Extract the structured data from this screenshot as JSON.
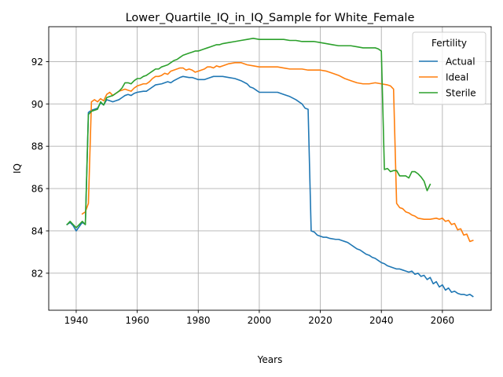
{
  "chart_data": {
    "type": "line",
    "title": "Lower_Quartile_IQ_in_IQ_Sample for White_Female",
    "xlabel": "Years",
    "ylabel": "IQ",
    "xlim": [
      1931,
      2076
    ],
    "ylim": [
      80.25,
      93.65
    ],
    "xticks": [
      1940,
      1960,
      1980,
      2000,
      2020,
      2040,
      2060
    ],
    "yticks": [
      82,
      84,
      86,
      88,
      90,
      92
    ],
    "grid": true,
    "legend": {
      "title": "Fertility",
      "position": "top-right"
    },
    "series": [
      {
        "name": "Actual",
        "color": "#1f77b4",
        "points": [
          [
            1937,
            84.3
          ],
          [
            1938,
            84.4
          ],
          [
            1939,
            84.25
          ],
          [
            1940,
            84.0
          ],
          [
            1941,
            84.2
          ],
          [
            1942,
            84.4
          ],
          [
            1943,
            84.3
          ],
          [
            1944,
            89.6
          ],
          [
            1945,
            89.7
          ],
          [
            1946,
            89.75
          ],
          [
            1947,
            89.8
          ],
          [
            1948,
            90.05
          ],
          [
            1949,
            89.95
          ],
          [
            1950,
            90.2
          ],
          [
            1951,
            90.15
          ],
          [
            1952,
            90.1
          ],
          [
            1953,
            90.15
          ],
          [
            1954,
            90.2
          ],
          [
            1955,
            90.3
          ],
          [
            1956,
            90.4
          ],
          [
            1957,
            90.45
          ],
          [
            1958,
            90.4
          ],
          [
            1959,
            90.5
          ],
          [
            1960,
            90.55
          ],
          [
            1962,
            90.6
          ],
          [
            1963,
            90.6
          ],
          [
            1964,
            90.7
          ],
          [
            1966,
            90.9
          ],
          [
            1968,
            90.95
          ],
          [
            1970,
            91.05
          ],
          [
            1971,
            91.0
          ],
          [
            1972,
            91.1
          ],
          [
            1974,
            91.25
          ],
          [
            1975,
            91.3
          ],
          [
            1977,
            91.25
          ],
          [
            1978,
            91.25
          ],
          [
            1980,
            91.15
          ],
          [
            1982,
            91.15
          ],
          [
            1984,
            91.25
          ],
          [
            1985,
            91.3
          ],
          [
            1986,
            91.3
          ],
          [
            1988,
            91.3
          ],
          [
            1990,
            91.25
          ],
          [
            1992,
            91.2
          ],
          [
            1994,
            91.1
          ],
          [
            1996,
            90.95
          ],
          [
            1997,
            90.8
          ],
          [
            1998,
            90.75
          ],
          [
            1999,
            90.65
          ],
          [
            2000,
            90.55
          ],
          [
            2002,
            90.55
          ],
          [
            2004,
            90.55
          ],
          [
            2006,
            90.55
          ],
          [
            2008,
            90.45
          ],
          [
            2010,
            90.35
          ],
          [
            2012,
            90.2
          ],
          [
            2014,
            90.0
          ],
          [
            2015,
            89.8
          ],
          [
            2016,
            89.75
          ],
          [
            2017,
            84.0
          ],
          [
            2018,
            83.95
          ],
          [
            2019,
            83.8
          ],
          [
            2020,
            83.75
          ],
          [
            2021,
            83.7
          ],
          [
            2022,
            83.7
          ],
          [
            2023,
            83.65
          ],
          [
            2025,
            83.6
          ],
          [
            2026,
            83.6
          ],
          [
            2027,
            83.55
          ],
          [
            2028,
            83.5
          ],
          [
            2029,
            83.45
          ],
          [
            2030,
            83.35
          ],
          [
            2031,
            83.25
          ],
          [
            2032,
            83.15
          ],
          [
            2033,
            83.1
          ],
          [
            2034,
            83.0
          ],
          [
            2035,
            82.9
          ],
          [
            2036,
            82.85
          ],
          [
            2037,
            82.75
          ],
          [
            2038,
            82.7
          ],
          [
            2039,
            82.6
          ],
          [
            2040,
            82.5
          ],
          [
            2041,
            82.45
          ],
          [
            2042,
            82.35
          ],
          [
            2043,
            82.3
          ],
          [
            2044,
            82.25
          ],
          [
            2045,
            82.2
          ],
          [
            2046,
            82.2
          ],
          [
            2047,
            82.15
          ],
          [
            2048,
            82.1
          ],
          [
            2049,
            82.05
          ],
          [
            2050,
            82.1
          ],
          [
            2051,
            81.95
          ],
          [
            2052,
            82.0
          ],
          [
            2053,
            81.85
          ],
          [
            2054,
            81.9
          ],
          [
            2055,
            81.7
          ],
          [
            2056,
            81.8
          ],
          [
            2057,
            81.5
          ],
          [
            2058,
            81.6
          ],
          [
            2059,
            81.35
          ],
          [
            2060,
            81.45
          ],
          [
            2061,
            81.2
          ],
          [
            2062,
            81.3
          ],
          [
            2063,
            81.1
          ],
          [
            2064,
            81.15
          ],
          [
            2065,
            81.05
          ],
          [
            2066,
            81.0
          ],
          [
            2067,
            81.0
          ],
          [
            2068,
            80.95
          ],
          [
            2069,
            81.0
          ],
          [
            2070,
            80.9
          ]
        ]
      },
      {
        "name": "Ideal",
        "color": "#ff7f0e",
        "points": [
          [
            1942,
            84.8
          ],
          [
            1943,
            84.9
          ],
          [
            1944,
            85.3
          ],
          [
            1945,
            90.1
          ],
          [
            1946,
            90.2
          ],
          [
            1947,
            90.1
          ],
          [
            1948,
            90.25
          ],
          [
            1949,
            90.15
          ],
          [
            1950,
            90.45
          ],
          [
            1951,
            90.55
          ],
          [
            1952,
            90.4
          ],
          [
            1953,
            90.5
          ],
          [
            1954,
            90.6
          ],
          [
            1955,
            90.65
          ],
          [
            1956,
            90.7
          ],
          [
            1957,
            90.65
          ],
          [
            1958,
            90.6
          ],
          [
            1959,
            90.75
          ],
          [
            1960,
            90.85
          ],
          [
            1961,
            90.9
          ],
          [
            1962,
            90.95
          ],
          [
            1963,
            90.95
          ],
          [
            1964,
            91.05
          ],
          [
            1965,
            91.2
          ],
          [
            1966,
            91.3
          ],
          [
            1967,
            91.3
          ],
          [
            1968,
            91.35
          ],
          [
            1969,
            91.45
          ],
          [
            1970,
            91.4
          ],
          [
            1971,
            91.55
          ],
          [
            1972,
            91.6
          ],
          [
            1973,
            91.65
          ],
          [
            1974,
            91.7
          ],
          [
            1975,
            91.7
          ],
          [
            1976,
            91.6
          ],
          [
            1977,
            91.65
          ],
          [
            1978,
            91.6
          ],
          [
            1979,
            91.5
          ],
          [
            1980,
            91.55
          ],
          [
            1981,
            91.6
          ],
          [
            1982,
            91.65
          ],
          [
            1983,
            91.75
          ],
          [
            1984,
            91.75
          ],
          [
            1985,
            91.7
          ],
          [
            1986,
            91.8
          ],
          [
            1987,
            91.75
          ],
          [
            1988,
            91.8
          ],
          [
            1989,
            91.85
          ],
          [
            1990,
            91.9
          ],
          [
            1992,
            91.95
          ],
          [
            1994,
            91.95
          ],
          [
            1996,
            91.85
          ],
          [
            1998,
            91.8
          ],
          [
            2000,
            91.75
          ],
          [
            2002,
            91.75
          ],
          [
            2004,
            91.75
          ],
          [
            2006,
            91.75
          ],
          [
            2008,
            91.7
          ],
          [
            2010,
            91.65
          ],
          [
            2012,
            91.65
          ],
          [
            2014,
            91.65
          ],
          [
            2016,
            91.6
          ],
          [
            2018,
            91.6
          ],
          [
            2020,
            91.6
          ],
          [
            2022,
            91.55
          ],
          [
            2024,
            91.45
          ],
          [
            2026,
            91.35
          ],
          [
            2028,
            91.2
          ],
          [
            2030,
            91.1
          ],
          [
            2032,
            91.0
          ],
          [
            2034,
            90.95
          ],
          [
            2036,
            90.95
          ],
          [
            2038,
            91.0
          ],
          [
            2040,
            90.95
          ],
          [
            2042,
            90.9
          ],
          [
            2043,
            90.85
          ],
          [
            2044,
            90.7
          ],
          [
            2045,
            85.3
          ],
          [
            2046,
            85.1
          ],
          [
            2047,
            85.05
          ],
          [
            2048,
            84.9
          ],
          [
            2049,
            84.85
          ],
          [
            2050,
            84.75
          ],
          [
            2051,
            84.7
          ],
          [
            2052,
            84.6
          ],
          [
            2054,
            84.55
          ],
          [
            2056,
            84.55
          ],
          [
            2058,
            84.6
          ],
          [
            2059,
            84.55
          ],
          [
            2060,
            84.6
          ],
          [
            2061,
            84.45
          ],
          [
            2062,
            84.5
          ],
          [
            2063,
            84.3
          ],
          [
            2064,
            84.35
          ],
          [
            2065,
            84.05
          ],
          [
            2066,
            84.1
          ],
          [
            2067,
            83.8
          ],
          [
            2068,
            83.85
          ],
          [
            2069,
            83.5
          ],
          [
            2070,
            83.55
          ]
        ]
      },
      {
        "name": "Sterile",
        "color": "#2ca02c",
        "points": [
          [
            1937,
            84.3
          ],
          [
            1938,
            84.45
          ],
          [
            1939,
            84.3
          ],
          [
            1940,
            84.15
          ],
          [
            1941,
            84.3
          ],
          [
            1942,
            84.45
          ],
          [
            1943,
            84.3
          ],
          [
            1944,
            89.5
          ],
          [
            1945,
            89.65
          ],
          [
            1946,
            89.7
          ],
          [
            1947,
            89.75
          ],
          [
            1948,
            90.1
          ],
          [
            1949,
            89.95
          ],
          [
            1950,
            90.3
          ],
          [
            1951,
            90.35
          ],
          [
            1952,
            90.4
          ],
          [
            1953,
            90.5
          ],
          [
            1954,
            90.6
          ],
          [
            1955,
            90.75
          ],
          [
            1956,
            91.0
          ],
          [
            1957,
            91.0
          ],
          [
            1958,
            90.95
          ],
          [
            1959,
            91.1
          ],
          [
            1960,
            91.2
          ],
          [
            1961,
            91.2
          ],
          [
            1962,
            91.3
          ],
          [
            1963,
            91.35
          ],
          [
            1964,
            91.45
          ],
          [
            1965,
            91.55
          ],
          [
            1966,
            91.65
          ],
          [
            1967,
            91.65
          ],
          [
            1968,
            91.75
          ],
          [
            1969,
            91.8
          ],
          [
            1970,
            91.85
          ],
          [
            1971,
            91.95
          ],
          [
            1972,
            92.05
          ],
          [
            1973,
            92.1
          ],
          [
            1974,
            92.2
          ],
          [
            1975,
            92.3
          ],
          [
            1976,
            92.35
          ],
          [
            1977,
            92.4
          ],
          [
            1978,
            92.45
          ],
          [
            1979,
            92.5
          ],
          [
            1980,
            92.5
          ],
          [
            1981,
            92.55
          ],
          [
            1982,
            92.6
          ],
          [
            1983,
            92.65
          ],
          [
            1984,
            92.7
          ],
          [
            1985,
            92.75
          ],
          [
            1986,
            92.8
          ],
          [
            1987,
            92.8
          ],
          [
            1988,
            92.85
          ],
          [
            1990,
            92.9
          ],
          [
            1992,
            92.95
          ],
          [
            1994,
            93.0
          ],
          [
            1996,
            93.05
          ],
          [
            1998,
            93.1
          ],
          [
            2000,
            93.05
          ],
          [
            2002,
            93.05
          ],
          [
            2004,
            93.05
          ],
          [
            2006,
            93.05
          ],
          [
            2008,
            93.05
          ],
          [
            2010,
            93.0
          ],
          [
            2012,
            93.0
          ],
          [
            2014,
            92.95
          ],
          [
            2016,
            92.95
          ],
          [
            2018,
            92.95
          ],
          [
            2020,
            92.9
          ],
          [
            2022,
            92.85
          ],
          [
            2024,
            92.8
          ],
          [
            2026,
            92.75
          ],
          [
            2028,
            92.75
          ],
          [
            2030,
            92.75
          ],
          [
            2032,
            92.7
          ],
          [
            2034,
            92.65
          ],
          [
            2036,
            92.65
          ],
          [
            2038,
            92.65
          ],
          [
            2039,
            92.6
          ],
          [
            2040,
            92.5
          ],
          [
            2041,
            86.9
          ],
          [
            2042,
            86.95
          ],
          [
            2043,
            86.8
          ],
          [
            2044,
            86.85
          ],
          [
            2045,
            86.85
          ],
          [
            2046,
            86.6
          ],
          [
            2047,
            86.6
          ],
          [
            2048,
            86.6
          ],
          [
            2049,
            86.5
          ],
          [
            2050,
            86.8
          ],
          [
            2051,
            86.8
          ],
          [
            2052,
            86.7
          ],
          [
            2053,
            86.55
          ],
          [
            2054,
            86.35
          ],
          [
            2055,
            85.9
          ],
          [
            2056,
            86.2
          ]
        ]
      }
    ]
  }
}
